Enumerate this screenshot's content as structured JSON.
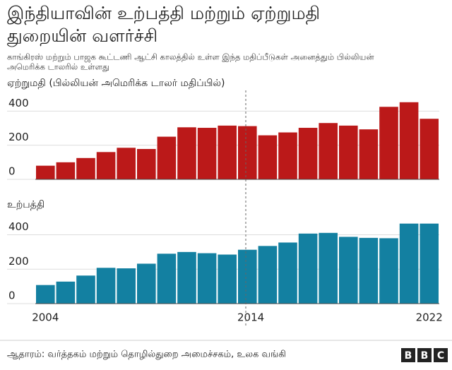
{
  "title": [
    "இந்தியாவின் உற்பத்தி மற்றும் ஏற்றுமதி",
    "துறையின் வளர்ச்சி"
  ],
  "subtitle": [
    "காங்கிரஸ் மற்றும் பாஜக கூட்டணி ஆட்சி காலத்தில் உள்ள இந்த மதிப்பீடுகள் அனைத்தும் பில்லியன்",
    "அமெரிக்க டாலரில் உள்ளது"
  ],
  "source": "ஆதாரம்: வர்த்தகம் மற்றும் தொழில்துறை அமைச்சகம், உலக வங்கி",
  "logo": [
    "B",
    "B",
    "C"
  ],
  "chart_data": [
    {
      "type": "bar",
      "title": "ஏற்றுமதி (பில்லியன் அமெரிக்க டாலர் மதிப்பில்)",
      "values": [
        80,
        100,
        125,
        160,
        185,
        178,
        250,
        305,
        302,
        315,
        312,
        258,
        275,
        302,
        330,
        315,
        293,
        425,
        452,
        355
      ],
      "color": "#bb1919",
      "ylim": [
        0,
        480
      ],
      "yticks": [
        0,
        200,
        400
      ],
      "grid": true
    },
    {
      "type": "bar",
      "title": "உற்பத்தி",
      "categories": [
        "2004",
        null,
        null,
        null,
        null,
        null,
        null,
        null,
        null,
        null,
        "2014",
        null,
        null,
        null,
        null,
        null,
        null,
        null,
        null,
        "2022"
      ],
      "values": [
        108,
        128,
        163,
        208,
        205,
        232,
        290,
        300,
        293,
        285,
        313,
        335,
        355,
        407,
        411,
        388,
        382,
        380,
        465,
        465
      ],
      "color": "#1380a1",
      "ylim": [
        0,
        480
      ],
      "yticks": [
        0,
        200,
        400
      ],
      "grid": true
    }
  ]
}
